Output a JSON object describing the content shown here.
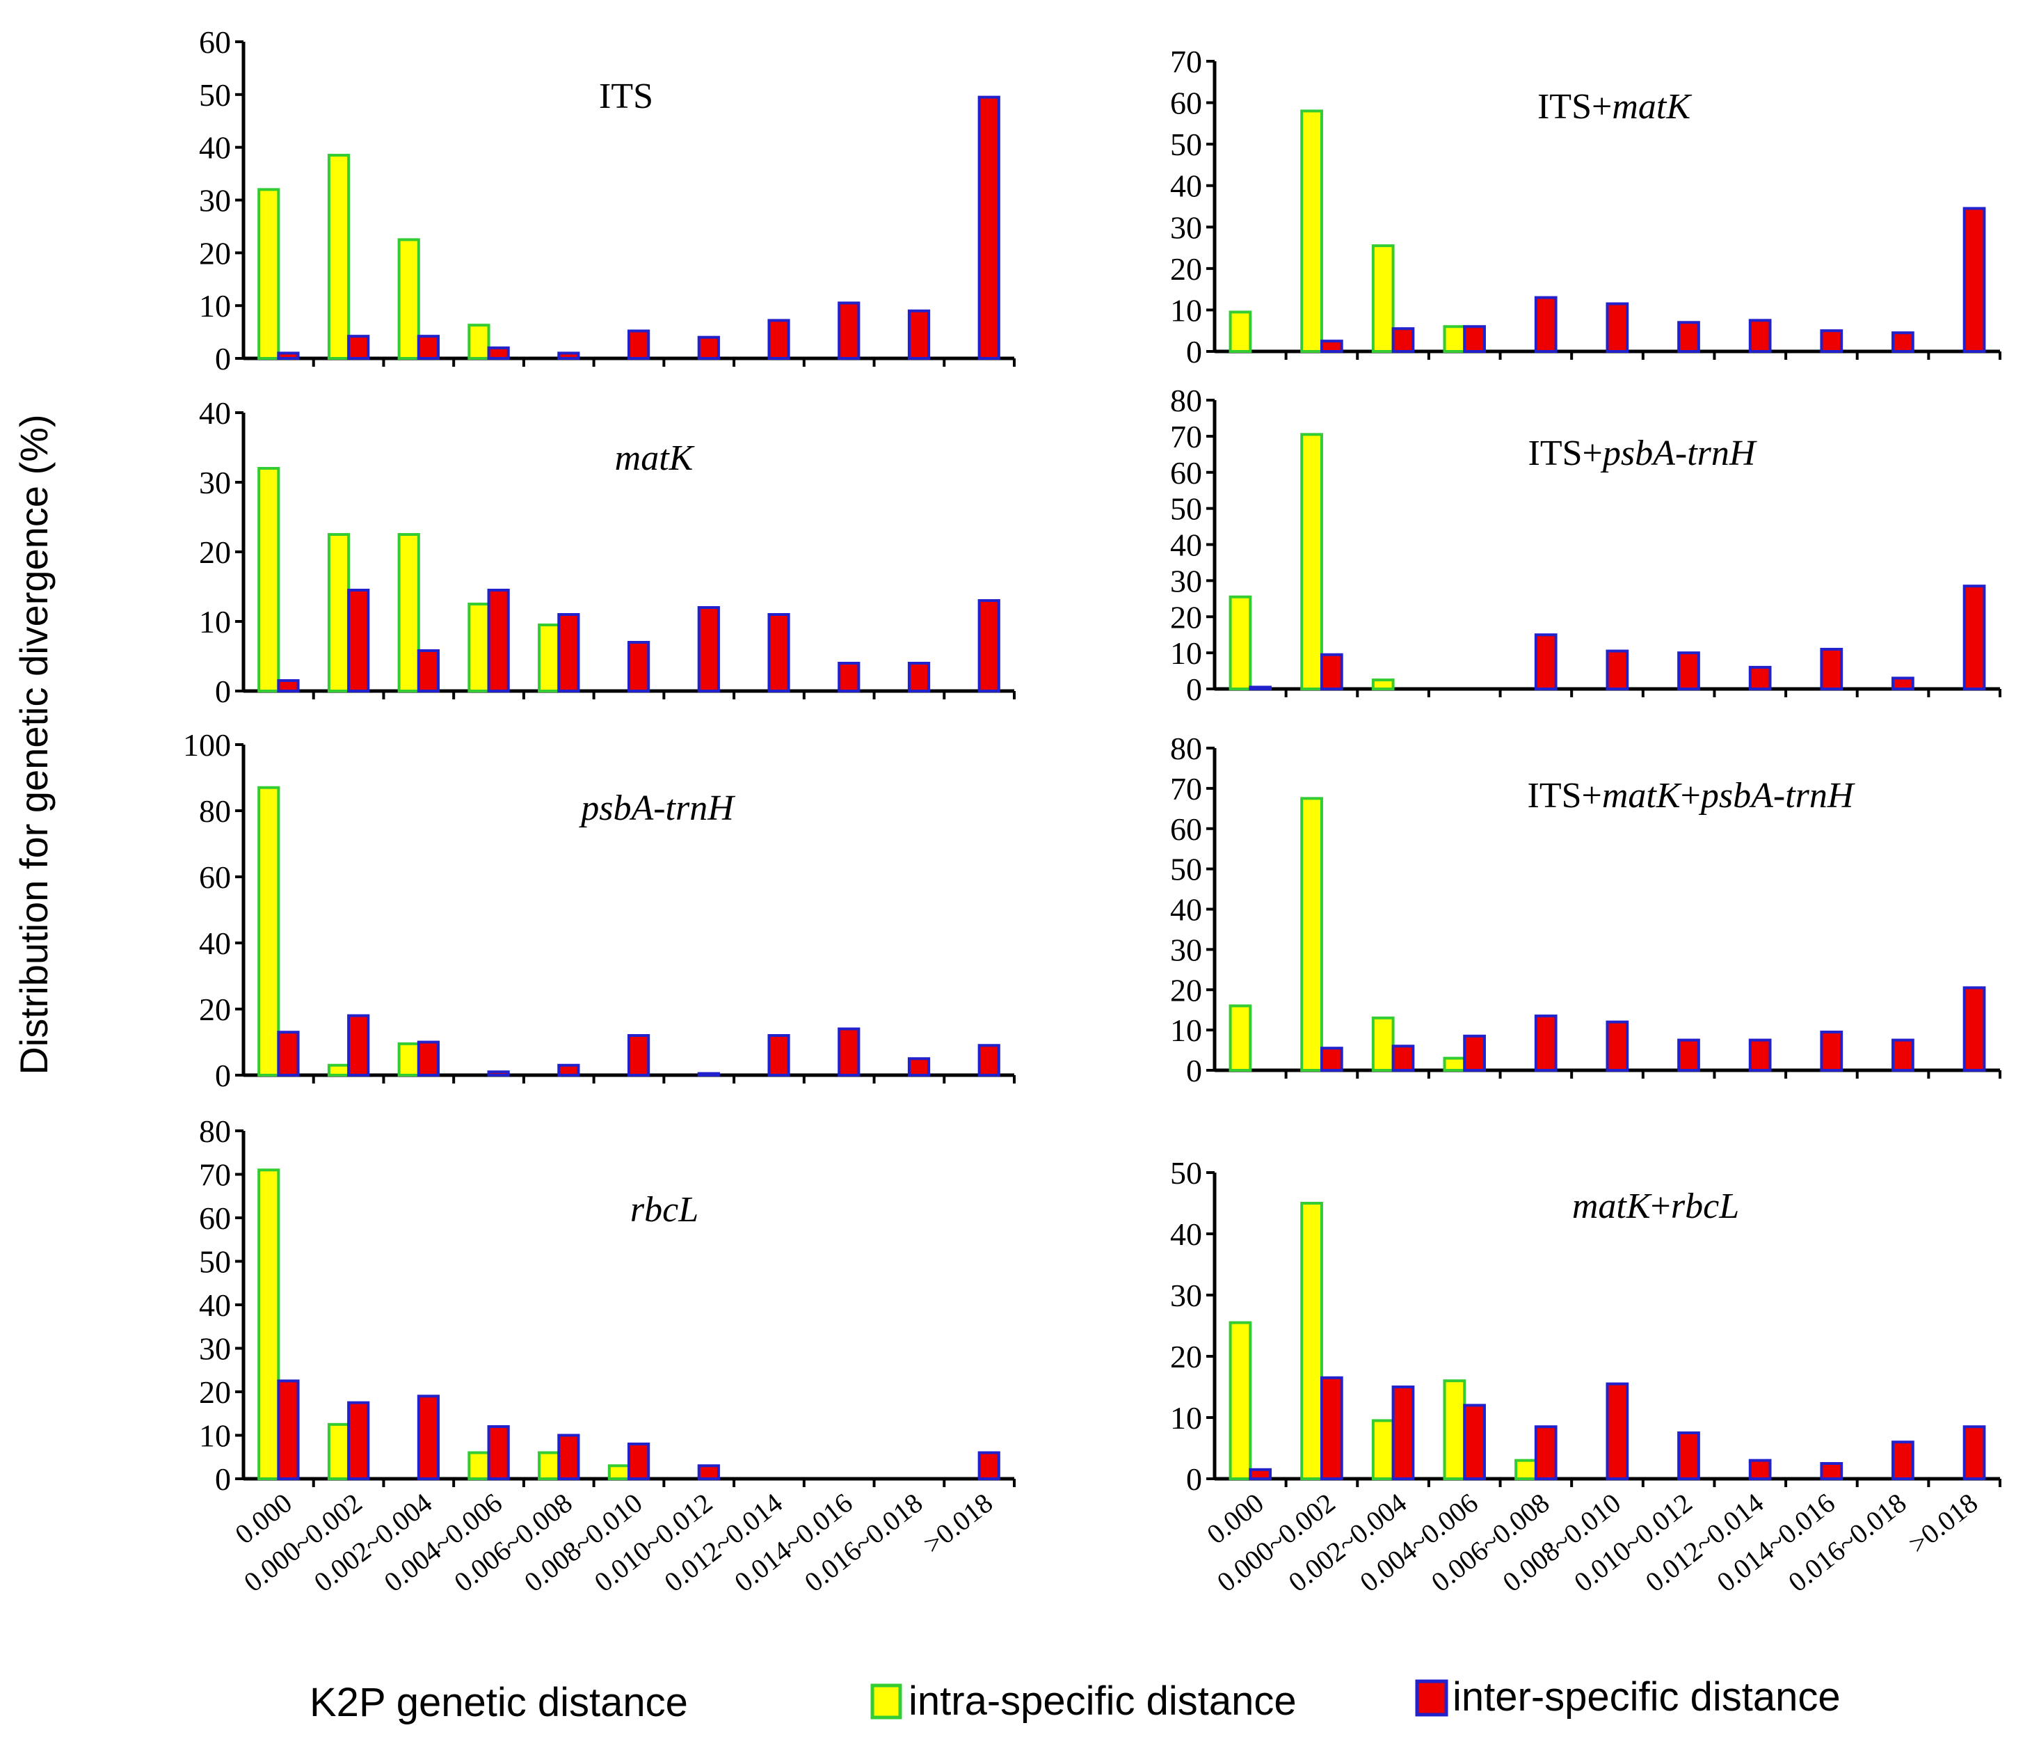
{
  "figure": {
    "y_label": "Distribution for genetic divergence (%)",
    "x_label": "K2P genetic distance",
    "legend": {
      "intra_label": "intra-specific distance",
      "inter_label": "inter-specific distance"
    }
  },
  "colors": {
    "intra_fill": "#ffff00",
    "intra_stroke": "#33cc33",
    "inter_fill": "#ee0000",
    "inter_stroke": "#2222cc",
    "axis": "#000000"
  },
  "chart_data": [
    {
      "type": "bar",
      "title_parts": [
        {
          "text": "ITS",
          "italic": false
        }
      ],
      "categories": [
        "0.000",
        "0.000~0.002",
        "0.002~0.004",
        "0.004~0.006",
        "0.006~0.008",
        "0.008~0.010",
        "0.010~0.012",
        "0.012~0.014",
        "0.014~0.016",
        "0.016~0.018",
        ">0.018"
      ],
      "ylim": [
        0,
        60
      ],
      "yticks": [
        "0",
        "10",
        "20",
        "30",
        "40",
        "50",
        "60"
      ],
      "series": [
        {
          "name": "intra-specific distance",
          "values": [
            32,
            38.5,
            22.5,
            6.3,
            0,
            0,
            0,
            0,
            0,
            0,
            0
          ]
        },
        {
          "name": "inter-specific distance",
          "values": [
            1,
            4.2,
            4.2,
            2,
            1,
            5.2,
            4,
            7.2,
            10.5,
            9,
            49.5
          ]
        }
      ]
    },
    {
      "type": "bar",
      "title_parts": [
        {
          "text": "ITS+",
          "italic": false
        },
        {
          "text": "matK",
          "italic": true
        }
      ],
      "categories": [
        "0.000",
        "0.000~0.002",
        "0.002~0.004",
        "0.004~0.006",
        "0.006~0.008",
        "0.008~0.010",
        "0.010~0.012",
        "0.012~0.014",
        "0.014~0.016",
        "0.016~0.018",
        ">0.018"
      ],
      "ylim": [
        0,
        70
      ],
      "yticks": [
        "0",
        "10",
        "20",
        "30",
        "40",
        "50",
        "60",
        "70"
      ],
      "series": [
        {
          "name": "intra-specific distance",
          "values": [
            9.5,
            58,
            25.5,
            6,
            0,
            0,
            0,
            0,
            0,
            0,
            0
          ]
        },
        {
          "name": "inter-specific distance",
          "values": [
            0,
            2.5,
            5.5,
            6,
            13,
            11.5,
            7,
            7.5,
            5,
            4.5,
            34.5
          ]
        }
      ]
    },
    {
      "type": "bar",
      "title_parts": [
        {
          "text": "matK",
          "italic": true
        }
      ],
      "categories": [
        "0.000",
        "0.000~0.002",
        "0.002~0.004",
        "0.004~0.006",
        "0.006~0.008",
        "0.008~0.010",
        "0.010~0.012",
        "0.012~0.014",
        "0.014~0.016",
        "0.016~0.018",
        ">0.018"
      ],
      "ylim": [
        0,
        40
      ],
      "yticks": [
        "0",
        "10",
        "20",
        "30",
        "40"
      ],
      "series": [
        {
          "name": "intra-specific distance",
          "values": [
            32,
            22.5,
            22.5,
            12.5,
            9.5,
            0,
            0,
            0,
            0,
            0,
            0
          ]
        },
        {
          "name": "inter-specific distance",
          "values": [
            1.5,
            14.5,
            5.8,
            14.5,
            11,
            7,
            12,
            11,
            4,
            4,
            13
          ]
        }
      ]
    },
    {
      "type": "bar",
      "title_parts": [
        {
          "text": "ITS+",
          "italic": false
        },
        {
          "text": "psbA-trnH",
          "italic": true
        }
      ],
      "categories": [
        "0.000",
        "0.000~0.002",
        "0.002~0.004",
        "0.004~0.006",
        "0.006~0.008",
        "0.008~0.010",
        "0.010~0.012",
        "0.012~0.014",
        "0.014~0.016",
        "0.016~0.018",
        ">0.018"
      ],
      "ylim": [
        0,
        80
      ],
      "yticks": [
        "0",
        "10",
        "20",
        "30",
        "40",
        "50",
        "60",
        "70",
        "80"
      ],
      "series": [
        {
          "name": "intra-specific distance",
          "values": [
            25.5,
            70.5,
            2.5,
            0,
            0,
            0,
            0,
            0,
            0,
            0,
            0
          ]
        },
        {
          "name": "inter-specific distance",
          "values": [
            0.5,
            9.5,
            0,
            0,
            15,
            10.5,
            10,
            6,
            11,
            3,
            28.5
          ]
        }
      ]
    },
    {
      "type": "bar",
      "title_parts": [
        {
          "text": "psbA-trnH",
          "italic": true
        }
      ],
      "categories": [
        "0.000",
        "0.000~0.002",
        "0.002~0.004",
        "0.004~0.006",
        "0.006~0.008",
        "0.008~0.010",
        "0.010~0.012",
        "0.012~0.014",
        "0.014~0.016",
        "0.016~0.018",
        ">0.018"
      ],
      "ylim": [
        0,
        100
      ],
      "yticks": [
        "0",
        "20",
        "40",
        "60",
        "80",
        "100"
      ],
      "series": [
        {
          "name": "intra-specific distance",
          "values": [
            87,
            3,
            9.5,
            0,
            0,
            0,
            0,
            0,
            0,
            0,
            0
          ]
        },
        {
          "name": "inter-specific distance",
          "values": [
            13,
            18,
            10,
            1,
            3,
            12,
            0.5,
            12,
            14,
            5,
            9
          ]
        }
      ]
    },
    {
      "type": "bar",
      "title_parts": [
        {
          "text": "ITS+",
          "italic": false
        },
        {
          "text": "matK",
          "italic": true
        },
        {
          "text": "+",
          "italic": false
        },
        {
          "text": "psbA-trnH",
          "italic": true
        }
      ],
      "categories": [
        "0.000",
        "0.000~0.002",
        "0.002~0.004",
        "0.004~0.006",
        "0.006~0.008",
        "0.008~0.010",
        "0.010~0.012",
        "0.012~0.014",
        "0.014~0.016",
        "0.016~0.018",
        ">0.018"
      ],
      "ylim": [
        0,
        80
      ],
      "yticks": [
        "0",
        "10",
        "20",
        "30",
        "40",
        "50",
        "60",
        "70",
        "80"
      ],
      "series": [
        {
          "name": "intra-specific distance",
          "values": [
            16,
            67.5,
            13,
            3,
            0,
            0,
            0,
            0,
            0,
            0,
            0
          ]
        },
        {
          "name": "inter-specific distance",
          "values": [
            0,
            5.5,
            6,
            8.5,
            13.5,
            12,
            7.5,
            7.5,
            9.5,
            7.5,
            20.5
          ]
        }
      ]
    },
    {
      "type": "bar",
      "title_parts": [
        {
          "text": "rbcL",
          "italic": true
        }
      ],
      "categories": [
        "0.000",
        "0.000~0.002",
        "0.002~0.004",
        "0.004~0.006",
        "0.006~0.008",
        "0.008~0.010",
        "0.010~0.012",
        "0.012~0.014",
        "0.014~0.016",
        "0.016~0.018",
        ">0.018"
      ],
      "ylim": [
        0,
        80
      ],
      "yticks": [
        "0",
        "10",
        "20",
        "30",
        "40",
        "50",
        "60",
        "70",
        "80"
      ],
      "series": [
        {
          "name": "intra-specific distance",
          "values": [
            71,
            12.5,
            0,
            6,
            6,
            3,
            0,
            0,
            0,
            0,
            0
          ]
        },
        {
          "name": "inter-specific distance",
          "values": [
            22.5,
            17.5,
            19,
            12,
            10,
            8,
            3,
            0,
            0,
            0,
            6
          ]
        }
      ]
    },
    {
      "type": "bar",
      "title_parts": [
        {
          "text": "matK",
          "italic": true
        },
        {
          "text": "+",
          "italic": false
        },
        {
          "text": "rbcL",
          "italic": true
        }
      ],
      "categories": [
        "0.000",
        "0.000~0.002",
        "0.002~0.004",
        "0.004~0.006",
        "0.006~0.008",
        "0.008~0.010",
        "0.010~0.012",
        "0.012~0.014",
        "0.014~0.016",
        "0.016~0.018",
        ">0.018"
      ],
      "ylim": [
        0,
        50
      ],
      "yticks": [
        "0",
        "10",
        "20",
        "30",
        "40",
        "50"
      ],
      "series": [
        {
          "name": "intra-specific distance",
          "values": [
            25.5,
            45,
            9.5,
            16,
            3,
            0,
            0,
            0,
            0,
            0,
            0
          ]
        },
        {
          "name": "inter-specific distance",
          "values": [
            1.5,
            16.5,
            15,
            12,
            8.5,
            15.5,
            7.5,
            3,
            2.5,
            6,
            8.5
          ]
        }
      ]
    }
  ]
}
